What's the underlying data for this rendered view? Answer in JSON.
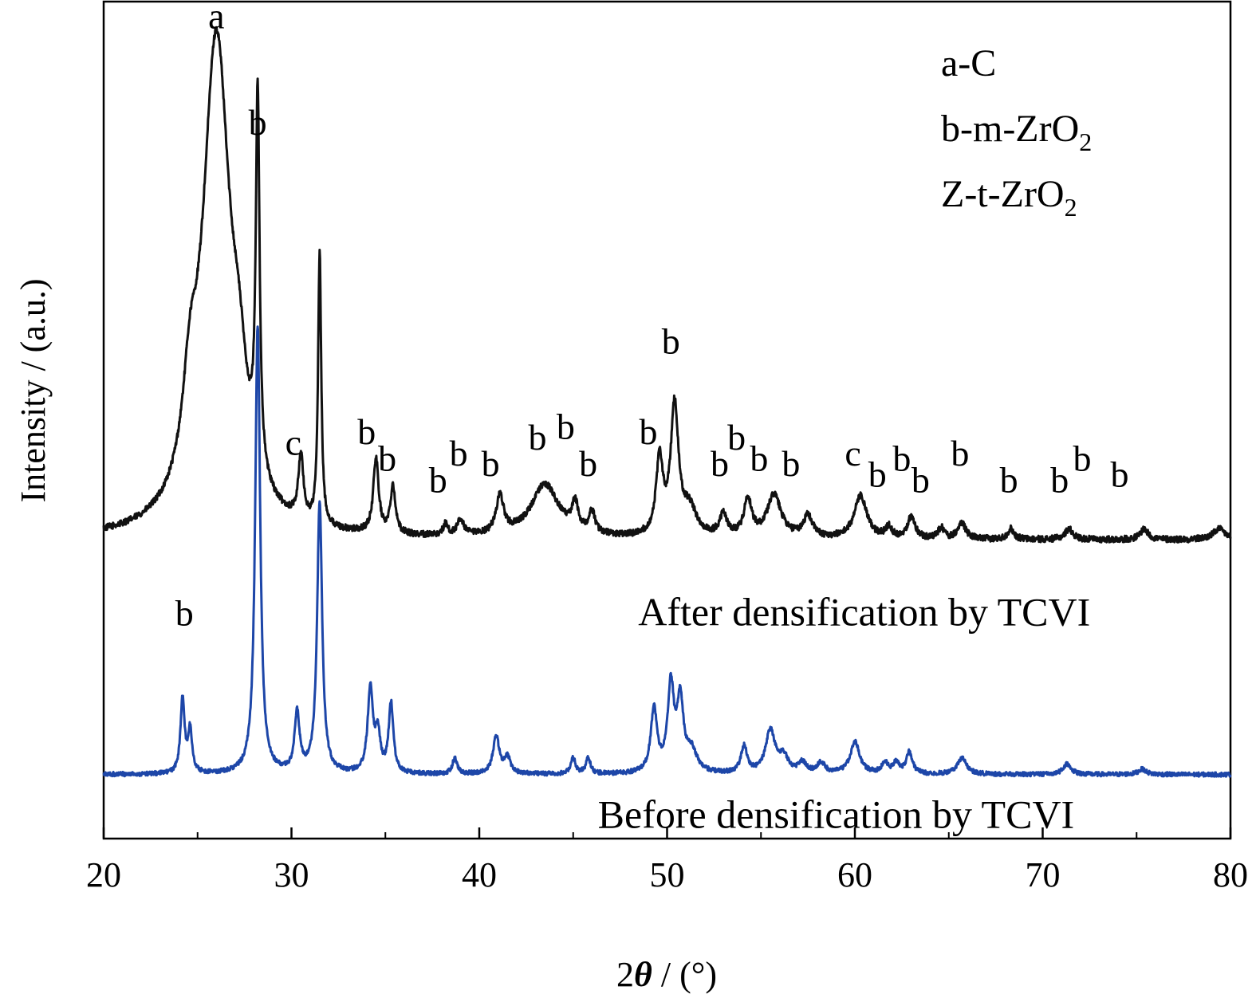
{
  "chart_data": {
    "type": "line",
    "xlabel": "2θ / (°)",
    "xlabel_parts": {
      "prefix": "2",
      "symbol": "θ",
      "suffix": " / (°)"
    },
    "ylabel": "Intensity / (a.u.)",
    "xlim": [
      20,
      80
    ],
    "xticks": [
      "20",
      "30",
      "40",
      "50",
      "60",
      "70",
      "80"
    ],
    "x_minor_step": 5,
    "grid": false,
    "legend_position": "top-right",
    "legend": [
      {
        "text": "a-C"
      },
      {
        "text": "b-m-ZrO",
        "sub": "2"
      },
      {
        "text": "Z-t-ZrO",
        "sub": "2"
      }
    ],
    "series": [
      {
        "name": "After densification by TCVI",
        "color": "#111111",
        "baseline": 0.56,
        "noise": 0.006,
        "peaks": [
          {
            "x": 26.0,
            "h": 0.92,
            "w": 0.9
          },
          {
            "x": 24.6,
            "h": 0.15,
            "w": 0.45
          },
          {
            "x": 27.2,
            "h": 0.14,
            "w": 0.5
          },
          {
            "x": 28.2,
            "h": 0.7,
            "w": 0.12
          },
          {
            "x": 30.5,
            "h": 0.12,
            "w": 0.16
          },
          {
            "x": 31.5,
            "h": 0.51,
            "w": 0.1
          },
          {
            "x": 34.5,
            "h": 0.14,
            "w": 0.17
          },
          {
            "x": 35.4,
            "h": 0.09,
            "w": 0.16
          },
          {
            "x": 38.2,
            "h": 0.02,
            "w": 0.15
          },
          {
            "x": 39.0,
            "h": 0.03,
            "w": 0.2
          },
          {
            "x": 41.1,
            "h": 0.07,
            "w": 0.25
          },
          {
            "x": 43.5,
            "h": 0.1,
            "w": 0.9
          },
          {
            "x": 45.1,
            "h": 0.05,
            "w": 0.2
          },
          {
            "x": 46.0,
            "h": 0.04,
            "w": 0.2
          },
          {
            "x": 49.6,
            "h": 0.14,
            "w": 0.22
          },
          {
            "x": 50.4,
            "h": 0.24,
            "w": 0.25
          },
          {
            "x": 51.2,
            "h": 0.05,
            "w": 0.45
          },
          {
            "x": 53.0,
            "h": 0.04,
            "w": 0.25
          },
          {
            "x": 54.3,
            "h": 0.07,
            "w": 0.25
          },
          {
            "x": 55.7,
            "h": 0.08,
            "w": 0.45
          },
          {
            "x": 57.5,
            "h": 0.04,
            "w": 0.3
          },
          {
            "x": 60.3,
            "h": 0.08,
            "w": 0.4
          },
          {
            "x": 61.8,
            "h": 0.02,
            "w": 0.2
          },
          {
            "x": 63.0,
            "h": 0.04,
            "w": 0.25
          },
          {
            "x": 64.6,
            "h": 0.02,
            "w": 0.2
          },
          {
            "x": 65.7,
            "h": 0.03,
            "w": 0.25
          },
          {
            "x": 68.3,
            "h": 0.02,
            "w": 0.2
          },
          {
            "x": 71.4,
            "h": 0.02,
            "w": 0.25
          },
          {
            "x": 75.4,
            "h": 0.02,
            "w": 0.25
          },
          {
            "x": 79.4,
            "h": 0.02,
            "w": 0.4
          }
        ]
      },
      {
        "name": "Before densification by TCVI",
        "color": "#1d46a8",
        "baseline": 0.12,
        "noise": 0.004,
        "peaks": [
          {
            "x": 24.2,
            "h": 0.14,
            "w": 0.13
          },
          {
            "x": 24.6,
            "h": 0.08,
            "w": 0.13
          },
          {
            "x": 28.2,
            "h": 0.84,
            "w": 0.16
          },
          {
            "x": 30.3,
            "h": 0.11,
            "w": 0.16
          },
          {
            "x": 31.5,
            "h": 0.51,
            "w": 0.16
          },
          {
            "x": 34.2,
            "h": 0.16,
            "w": 0.17
          },
          {
            "x": 34.6,
            "h": 0.07,
            "w": 0.15
          },
          {
            "x": 35.3,
            "h": 0.13,
            "w": 0.15
          },
          {
            "x": 38.7,
            "h": 0.03,
            "w": 0.15
          },
          {
            "x": 40.9,
            "h": 0.07,
            "w": 0.2
          },
          {
            "x": 41.5,
            "h": 0.03,
            "w": 0.2
          },
          {
            "x": 45.0,
            "h": 0.03,
            "w": 0.15
          },
          {
            "x": 45.8,
            "h": 0.03,
            "w": 0.15
          },
          {
            "x": 49.3,
            "h": 0.12,
            "w": 0.2
          },
          {
            "x": 50.2,
            "h": 0.16,
            "w": 0.2
          },
          {
            "x": 50.7,
            "h": 0.13,
            "w": 0.2
          },
          {
            "x": 51.3,
            "h": 0.04,
            "w": 0.35
          },
          {
            "x": 54.1,
            "h": 0.05,
            "w": 0.2
          },
          {
            "x": 55.5,
            "h": 0.08,
            "w": 0.3
          },
          {
            "x": 56.2,
            "h": 0.03,
            "w": 0.3
          },
          {
            "x": 57.2,
            "h": 0.02,
            "w": 0.25
          },
          {
            "x": 58.2,
            "h": 0.02,
            "w": 0.25
          },
          {
            "x": 60.0,
            "h": 0.06,
            "w": 0.3
          },
          {
            "x": 61.6,
            "h": 0.02,
            "w": 0.2
          },
          {
            "x": 62.2,
            "h": 0.02,
            "w": 0.2
          },
          {
            "x": 62.9,
            "h": 0.04,
            "w": 0.2
          },
          {
            "x": 65.7,
            "h": 0.03,
            "w": 0.3
          },
          {
            "x": 71.3,
            "h": 0.02,
            "w": 0.25
          },
          {
            "x": 75.3,
            "h": 0.01,
            "w": 0.25
          }
        ]
      }
    ],
    "annotations": [
      {
        "text": "a",
        "x": 26.0,
        "y": 1.52
      },
      {
        "text": "b",
        "x": 28.2,
        "y": 1.32
      },
      {
        "text": "c",
        "x": 30.1,
        "y": 0.72
      },
      {
        "text": "b",
        "x": 34.0,
        "y": 0.74
      },
      {
        "text": "b",
        "x": 35.1,
        "y": 0.69
      },
      {
        "text": "b",
        "x": 37.8,
        "y": 0.65
      },
      {
        "text": "b",
        "x": 38.9,
        "y": 0.7
      },
      {
        "text": "b",
        "x": 40.6,
        "y": 0.68
      },
      {
        "text": "b",
        "x": 43.1,
        "y": 0.73
      },
      {
        "text": "b",
        "x": 44.6,
        "y": 0.75
      },
      {
        "text": "b",
        "x": 45.8,
        "y": 0.68
      },
      {
        "text": "b",
        "x": 49.0,
        "y": 0.74
      },
      {
        "text": "b",
        "x": 50.2,
        "y": 0.91
      },
      {
        "text": "b",
        "x": 52.8,
        "y": 0.68
      },
      {
        "text": "b",
        "x": 53.7,
        "y": 0.73
      },
      {
        "text": "b",
        "x": 54.9,
        "y": 0.69
      },
      {
        "text": "b",
        "x": 56.6,
        "y": 0.68
      },
      {
        "text": "c",
        "x": 59.9,
        "y": 0.7
      },
      {
        "text": "b",
        "x": 61.2,
        "y": 0.66
      },
      {
        "text": "b",
        "x": 62.5,
        "y": 0.69
      },
      {
        "text": "b",
        "x": 63.5,
        "y": 0.65
      },
      {
        "text": "b",
        "x": 65.6,
        "y": 0.7
      },
      {
        "text": "b",
        "x": 68.2,
        "y": 0.65
      },
      {
        "text": "b",
        "x": 70.9,
        "y": 0.65
      },
      {
        "text": "b",
        "x": 72.1,
        "y": 0.69
      },
      {
        "text": "b",
        "x": 74.1,
        "y": 0.66
      },
      {
        "text": "b",
        "x": 24.3,
        "y": 0.4
      }
    ],
    "curve_labels": [
      {
        "text": "After densification by TCVI",
        "x": 60.5,
        "y": 0.4
      },
      {
        "text": "Before densification by TCVI",
        "x": 59.0,
        "y": 0.02
      }
    ]
  }
}
